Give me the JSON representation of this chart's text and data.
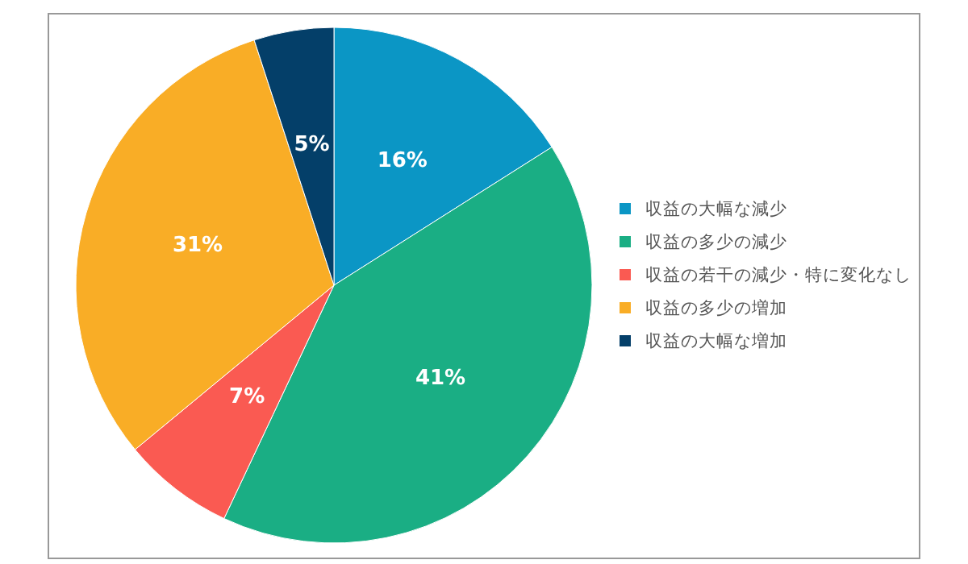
{
  "chart_data": {
    "type": "pie",
    "categories": [
      "収益の大幅な減少",
      "収益の多少の減少",
      "収益の若干の減少・特に変化なし",
      "収益の多少の増加",
      "収益の大幅な増加"
    ],
    "values": [
      16,
      41,
      7,
      31,
      5
    ],
    "colors": [
      "#0b96c5",
      "#1aae84",
      "#fa5a52",
      "#f9ad26",
      "#043f69"
    ],
    "value_labels": [
      "16%",
      "41%",
      "7%",
      "31%",
      "5%"
    ],
    "legend": "right"
  }
}
